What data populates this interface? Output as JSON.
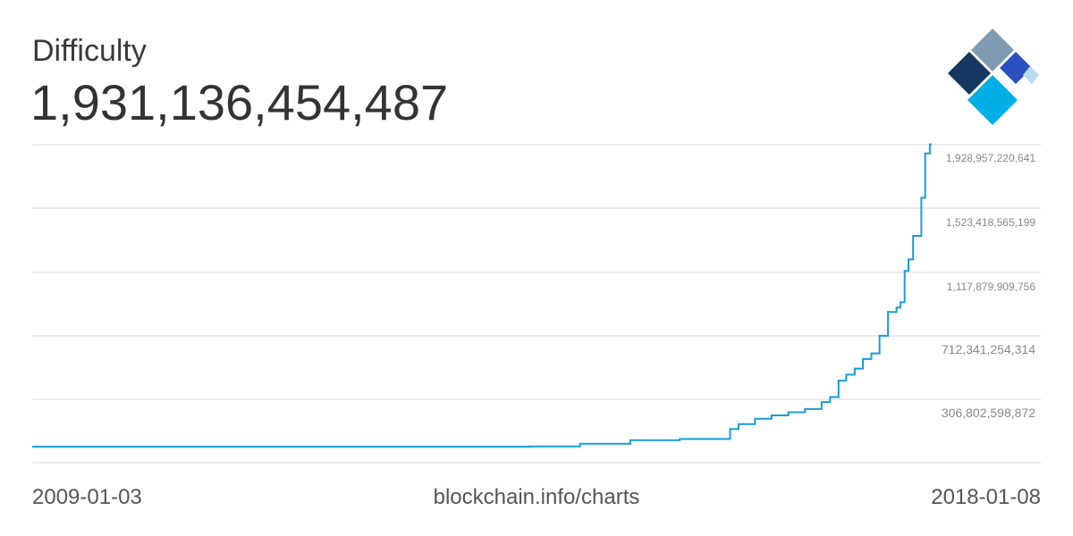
{
  "header": {
    "title": "Difficulty",
    "current_value": "1,931,136,454,487"
  },
  "footer": {
    "start_date": "2009-01-03",
    "source": "blockchain.info/charts",
    "end_date": "2018-01-08"
  },
  "logo": {
    "icon": "blockchain-logo-icon",
    "colors": [
      "#7f9bb3",
      "#16375f",
      "#2c4fbf",
      "#00aee6",
      "#b9dbef"
    ]
  },
  "colors": {
    "line": "#1a9bd7",
    "grid": "#d9d9d9",
    "tick_text": "#888888"
  },
  "chart_data": {
    "type": "line",
    "title": "Difficulty",
    "xlabel": "",
    "ylabel": "",
    "x_start": "2009-01-03",
    "x_end": "2018-01-08",
    "y_ticks": [
      {
        "value": 306802598872,
        "label": "306,802,598,872"
      },
      {
        "value": 712341254314,
        "label": "712,341,254,314"
      },
      {
        "value": 1117879909756,
        "label": "1,117,879,909,756"
      },
      {
        "value": 1523418565199,
        "label": "1,523,418,565,199"
      },
      {
        "value": 1928957220641,
        "label": "1,928,957,220,641"
      }
    ],
    "ylim": [
      0,
      1928957220641
    ],
    "grid": true,
    "legend": "none",
    "series": [
      {
        "x": [
          "2009-01-03",
          "2010-01-01",
          "2011-01-01",
          "2012-01-01",
          "2013-01-01",
          "2013-07-01",
          "2014-01-01",
          "2014-07-01",
          "2015-01-01",
          "2015-07-01",
          "2016-01-01",
          "2016-02-01",
          "2016-04-01",
          "2016-06-01",
          "2016-08-01",
          "2016-10-01",
          "2016-12-01",
          "2017-01-01",
          "2017-02-01",
          "2017-03-01",
          "2017-04-01",
          "2017-05-01",
          "2017-06-01",
          "2017-07-01",
          "2017-08-01",
          "2017-09-01",
          "2017-09-15",
          "2017-10-01",
          "2017-10-15",
          "2017-11-01",
          "2017-11-15",
          "2017-12-01",
          "2017-12-15",
          "2018-01-01",
          "2018-01-08"
        ],
        "y": [
          1,
          1,
          1,
          1500000,
          3400000,
          26000000,
          1420000000,
          18000000000,
          41000000000,
          49000000000,
          113000000000,
          144000000000,
          178000000000,
          200000000000,
          220000000000,
          240000000000,
          285000000000,
          317000000000,
          422000000000,
          460000000000,
          499000000000,
          560000000000,
          596000000000,
          708000000000,
          860000000000,
          888000000000,
          922000000000,
          1123000000000,
          1196000000000,
          1347000000000,
          1346000000000,
          1590000000000,
          1873000000000,
          1931136454487,
          1931136454487
        ]
      }
    ]
  }
}
